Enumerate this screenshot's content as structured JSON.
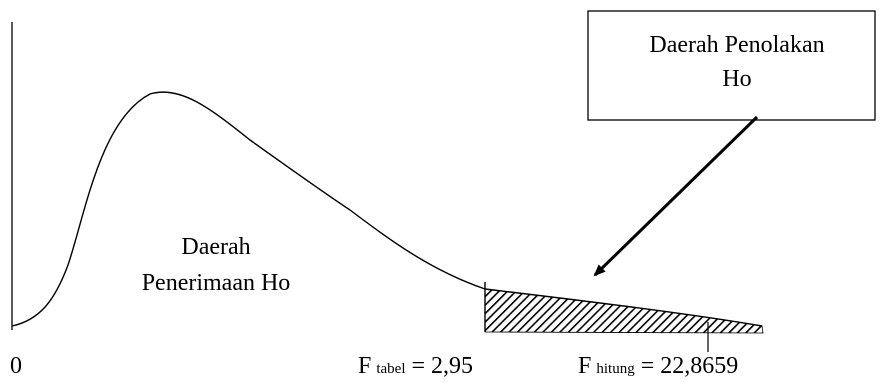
{
  "origin_label": "0",
  "acceptance_region": {
    "line1": "Daerah",
    "line2": "Penerimaan Ho"
  },
  "rejection_box": {
    "line1": "Daerah Penolakan",
    "line2": "Ho"
  },
  "f_table": {
    "letter": "F",
    "subscript": "tabel",
    "value": " = 2,95"
  },
  "f_count": {
    "letter": "F",
    "subscript": "hitung",
    "value": " = 22,8659"
  }
}
